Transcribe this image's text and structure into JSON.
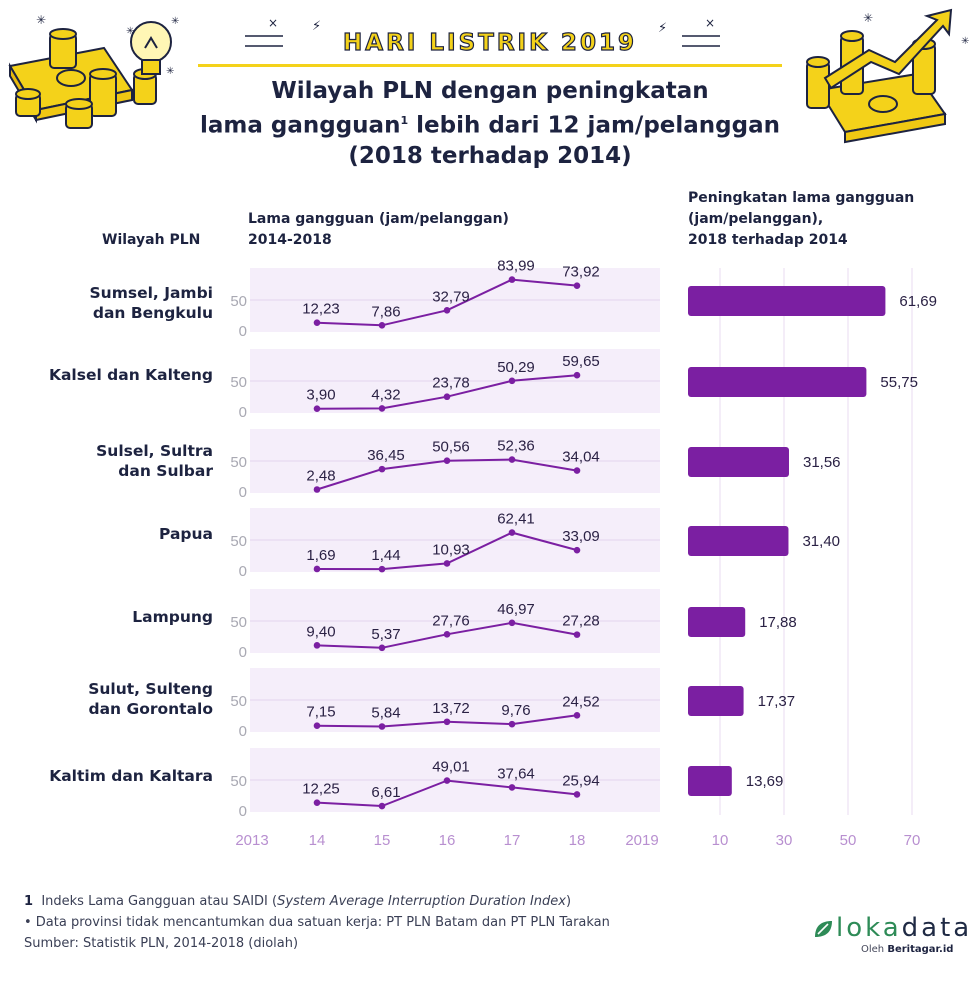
{
  "banner": "HARI LISTRIK 2019",
  "title": {
    "line1": "Wilayah PLN dengan peningkatan",
    "line2_pre": "lama gangguan",
    "line2_sup": "1",
    "line2_post": " lebih dari 12 jam/pelanggan",
    "line3": "(2018 terhadap 2014)"
  },
  "headers": {
    "region_col": "Wilayah PLN",
    "line_col_1": "Lama gangguan (jam/pelanggan)",
    "line_col_2": "2014-2018",
    "bar_col_1": "Peningkatan lama gangguan",
    "bar_col_2": "(jam/pelanggan),",
    "bar_col_3": "2018 terhadap 2014"
  },
  "regions": [
    {
      "line1": "Sumsel, Jambi",
      "line2": "dan Bengkulu"
    },
    {
      "line1": "Kalsel dan Kalteng",
      "line2": ""
    },
    {
      "line1": "Sulsel, Sultra",
      "line2": "dan Sulbar"
    },
    {
      "line1": "Papua",
      "line2": ""
    },
    {
      "line1": "Lampung",
      "line2": ""
    },
    {
      "line1": "Sulut, Sulteng",
      "line2": "dan Gorontalo"
    },
    {
      "line1": "Kaltim dan Kaltara",
      "line2": ""
    }
  ],
  "chart_data": [
    {
      "type": "line",
      "title": "Lama gangguan (jam/pelanggan) 2014-2018",
      "x": [
        2014,
        2015,
        2016,
        2017,
        2018
      ],
      "xtick_labels": [
        "2013",
        "14",
        "15",
        "16",
        "17",
        "18",
        "2019"
      ],
      "xlim": [
        2013,
        2019
      ],
      "ylim": [
        0,
        84
      ],
      "ytick_labels": [
        "0",
        "50"
      ],
      "series": [
        {
          "name": "Sumsel, Jambi dan Bengkulu",
          "values": [
            12.23,
            7.86,
            32.79,
            83.99,
            73.92
          ],
          "labels": [
            "12,23",
            "7,86",
            "32,79",
            "83,99",
            "73,92"
          ]
        },
        {
          "name": "Kalsel dan Kalteng",
          "values": [
            3.9,
            4.32,
            23.78,
            50.29,
            59.65
          ],
          "labels": [
            "3,90",
            "4,32",
            "23,78",
            "50,29",
            "59,65"
          ]
        },
        {
          "name": "Sulsel, Sultra dan Sulbar",
          "values": [
            2.48,
            36.45,
            50.56,
            52.36,
            34.04
          ],
          "labels": [
            "2,48",
            "36,45",
            "50,56",
            "52,36",
            "34,04"
          ]
        },
        {
          "name": "Papua",
          "values": [
            1.69,
            1.44,
            10.93,
            62.41,
            33.09
          ],
          "labels": [
            "1,69",
            "1,44",
            "10,93",
            "62,41",
            "33,09"
          ]
        },
        {
          "name": "Lampung",
          "values": [
            9.4,
            5.37,
            27.76,
            46.97,
            27.28
          ],
          "labels": [
            "9,40",
            "5,37",
            "27,76",
            "46,97",
            "27,28"
          ]
        },
        {
          "name": "Sulut, Sulteng dan Gorontalo",
          "values": [
            7.15,
            5.84,
            13.72,
            9.76,
            24.52
          ],
          "labels": [
            "7,15",
            "5,84",
            "13,72",
            "9,76",
            "24,52"
          ]
        },
        {
          "name": "Kaltim dan Kaltara",
          "values": [
            12.25,
            6.61,
            49.01,
            37.64,
            25.94
          ],
          "labels": [
            "12,25",
            "6,61",
            "49,01",
            "37,64",
            "25,94"
          ]
        }
      ],
      "colors": {
        "line": "#7b1fa2",
        "band": "#f5eefa",
        "axis_text": "#b88fd0"
      }
    },
    {
      "type": "bar",
      "title": "Peningkatan lama gangguan (jam/pelanggan), 2018 terhadap 2014",
      "categories": [
        "Sumsel, Jambi dan Bengkulu",
        "Kalsel dan Kalteng",
        "Sulsel, Sultra dan Sulbar",
        "Papua",
        "Lampung",
        "Sulut, Sulteng dan Gorontalo",
        "Kaltim dan Kaltara"
      ],
      "values": [
        61.69,
        55.75,
        31.56,
        31.4,
        17.88,
        17.37,
        13.69
      ],
      "value_labels": [
        "61,69",
        "55,75",
        "31,56",
        "31,40",
        "17,88",
        "17,37",
        "13,69"
      ],
      "xtick_labels": [
        "10",
        "30",
        "50",
        "70"
      ],
      "xticks": [
        10,
        30,
        50,
        70
      ],
      "xlim": [
        0,
        70
      ],
      "grid": true,
      "colors": {
        "bar": "#7b1fa2",
        "axis_text": "#b88fd0"
      }
    }
  ],
  "footnotes": {
    "fn1_num": "1",
    "fn1_text": "Indeks Lama Gangguan atau SAIDI (",
    "fn1_italic": "System Average Interruption Duration Index",
    "fn1_close": ")",
    "note": "• Data provinsi tidak mencantumkan dua satuan kerja: PT PLN Batam dan PT PLN Tarakan",
    "source": "Sumber: Statistik PLN, 2014-2018 (diolah)"
  },
  "logo": {
    "part1": "loka",
    "part2": "data",
    "sub_pre": "Oleh ",
    "sub_brand": "Beritagar.id",
    "icon": "leaf-icon"
  }
}
